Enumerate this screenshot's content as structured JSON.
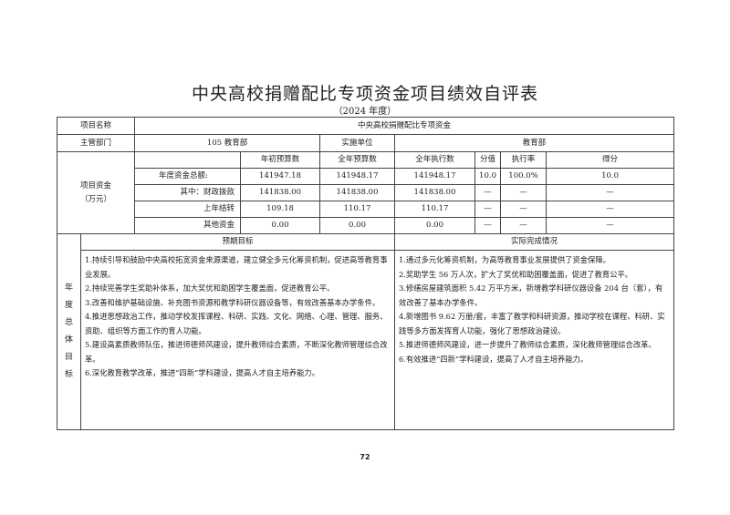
{
  "title": "中央高校捐赠配比专项资金项目绩效自评表",
  "subtitle": "（2024 年度）",
  "project": {
    "label": "项目名称",
    "value": "中央高校捐赠配比专项资金"
  },
  "department": {
    "label": "主管部门",
    "value": "105  教育部",
    "unit_label": "实施单位",
    "unit_value": "教育部"
  },
  "funds": {
    "label_line1": "项目资金",
    "label_line2": "（万元）",
    "headers": [
      "年初预算数",
      "全年预算数",
      "全年执行数",
      "分值",
      "执行率",
      "得分"
    ],
    "rows": [
      {
        "label": "年度资金总额:",
        "values": [
          "141947.18",
          "141948.17",
          "141948.17",
          "10.0",
          "100.0%",
          "10.0"
        ]
      },
      {
        "label": "其中：财政拨款",
        "values": [
          "141838.00",
          "141838.00",
          "141838.00",
          "—",
          "—",
          "—"
        ]
      },
      {
        "label": "上年结转",
        "values": [
          "109.18",
          "110.17",
          "110.17",
          "—",
          "—",
          "—"
        ]
      },
      {
        "label": "其他资金",
        "values": [
          "0.00",
          "0.00",
          "0.00",
          "—",
          "—",
          "—"
        ]
      }
    ]
  },
  "goals": {
    "label_chars": [
      "年",
      "度",
      "总",
      "体",
      "目",
      "标"
    ],
    "expected_header": "预期目标",
    "actual_header": "实际完成情况",
    "expected": [
      "1.持续引导和鼓励中央高校拓宽资金来源渠道，建立健全多元化筹资机制，促进高等教育事业发展。",
      "2.持续完善学生奖助补体系，加大奖优和助困学生覆盖面，促进教育公平。",
      "3.改善和维护基础设施、补充图书资源和教学科研仪器设备等，有效改善基本办学条件。",
      "4.推进思想政治工作，推动学校发挥课程、科研、实践、文化、网络、心理、管理、服务、资助、组织等方面工作的育人功能。",
      "5.建设高素质教师队伍，推进师德师风建设，提升教师综合素质，不断深化教师管理综合改革。",
      "6.深化教育教学改革，推进“四新”学科建设，提高人才自主培养能力。"
    ],
    "actual": [
      "1.通过多元化筹资机制，为高等教育事业发展提供了资金保障。",
      "2.奖助学生 56 万人次，扩大了奖优和助困覆盖面，促进了教育公平。",
      "3.修缮房屋建筑面积 5.42 万平方米，新增教学科研仪器设备 204 台（套），有效改善了基本办学条件。",
      "4.新增图书 9.62 万册/套，丰富了教学和科研资源，推动学校在课程、科研、实践等多方面发挥育人功能，强化了思想政治建设。",
      "5.推进师德师风建设，进一步提升了教师综合素质，深化教师管理综合改革。",
      "6.有效推进“四新”学科建设，提高了人才自主培养能力。"
    ]
  },
  "page_number": "72"
}
